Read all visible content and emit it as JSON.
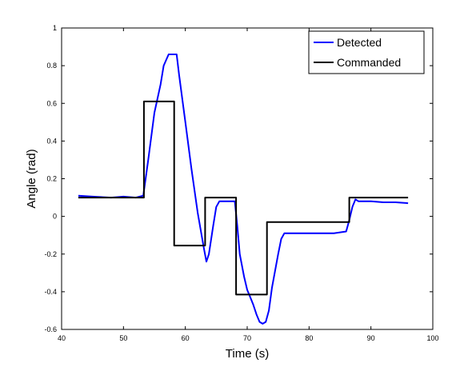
{
  "chart_data": {
    "type": "line",
    "title": "",
    "xlabel": "Time (s)",
    "ylabel": "Angle (rad)",
    "xlim": [
      40,
      100
    ],
    "ylim": [
      -0.6,
      1
    ],
    "xticks": [
      "40",
      "50",
      "60",
      "70",
      "80",
      "90",
      "100"
    ],
    "yticks": [
      "-0.6",
      "-0.4",
      "-0.2",
      "0",
      "0.2",
      "0.4",
      "0.6",
      "0.8",
      "1"
    ],
    "grid": false,
    "legend_position": "top-right",
    "series": [
      {
        "name": "Detected",
        "color": "#0000ff",
        "x": [
          42.7,
          45,
          48,
          50,
          52,
          53.2,
          54,
          55,
          56,
          56.5,
          57.3,
          58,
          58.6,
          59,
          60,
          61,
          62,
          63,
          63.4,
          63.8,
          64.5,
          65,
          65.5,
          66,
          67,
          68,
          68.4,
          68.8,
          69.5,
          70,
          70.5,
          71,
          71.5,
          72,
          72.5,
          73,
          73.5,
          74,
          75,
          75.5,
          76,
          78,
          80,
          82,
          84,
          86,
          86.5,
          87,
          87.5,
          88,
          90,
          92,
          94,
          96
        ],
        "y": [
          0.11,
          0.105,
          0.1,
          0.105,
          0.1,
          0.11,
          0.3,
          0.55,
          0.7,
          0.8,
          0.86,
          0.86,
          0.86,
          0.75,
          0.5,
          0.25,
          0.02,
          -0.17,
          -0.24,
          -0.2,
          -0.05,
          0.05,
          0.08,
          0.08,
          0.08,
          0.08,
          -0.05,
          -0.2,
          -0.32,
          -0.39,
          -0.43,
          -0.47,
          -0.52,
          -0.56,
          -0.57,
          -0.56,
          -0.5,
          -0.38,
          -0.2,
          -0.12,
          -0.09,
          -0.09,
          -0.09,
          -0.09,
          -0.09,
          -0.08,
          -0.02,
          0.05,
          0.09,
          0.08,
          0.08,
          0.075,
          0.075,
          0.07
        ]
      },
      {
        "name": "Commanded",
        "color": "#000000",
        "x": [
          42.7,
          53.3,
          53.3,
          58.2,
          58.2,
          63.2,
          63.2,
          68.2,
          68.2,
          73.2,
          73.2,
          86.5,
          86.5,
          96
        ],
        "y": [
          0.1,
          0.1,
          0.61,
          0.61,
          -0.155,
          -0.155,
          0.1,
          0.1,
          -0.415,
          -0.415,
          -0.03,
          -0.03,
          0.1,
          0.1
        ]
      }
    ]
  }
}
